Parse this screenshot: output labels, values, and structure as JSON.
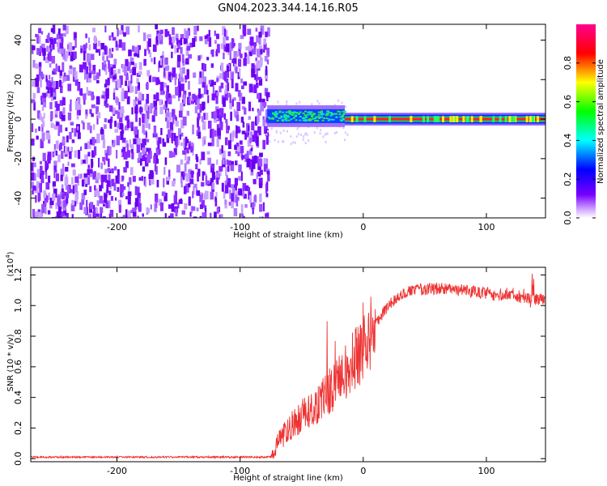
{
  "title": "GN04.2023.344.14.16.R05",
  "chart_data": [
    {
      "type": "heatmap",
      "xlabel": "Height of straight line (km)",
      "ylabel": "Frequency (Hz)",
      "xlim": [
        -270,
        148
      ],
      "ylim": [
        -50,
        48
      ],
      "x_ticks": [
        -200,
        -100,
        0,
        100
      ],
      "y_ticks": [
        40,
        20,
        0,
        -20,
        -40
      ],
      "colorbar": {
        "label": "Normalized spectral amplitude",
        "range": [
          0,
          1
        ],
        "ticks": [
          "0.0",
          "0.2",
          "0.4",
          "0.6",
          "0.8"
        ],
        "colors": [
          "#ffffff",
          "#7700ff",
          "#0000ff",
          "#00ffff",
          "#00ff00",
          "#ffff00",
          "#ff0000",
          "#ff0090"
        ]
      },
      "regions": [
        {
          "x_range": [
            -270,
            -78
          ],
          "description_value": "broadband noise",
          "amplitude": 0.05
        },
        {
          "x_range": [
            -78,
            -15
          ],
          "center_hz": 2,
          "amplitude": 0.45
        },
        {
          "x_range": [
            -15,
            148
          ],
          "center_hz": 0,
          "amplitude": 0.9
        }
      ]
    },
    {
      "type": "line",
      "xlabel": "Height of straight line (km)",
      "ylabel": "SNR (10 * v/v)",
      "y_multiplier": "(x10^4)",
      "xlim": [
        -270,
        148
      ],
      "ylim": [
        -0.02,
        1.25
      ],
      "x_ticks": [
        -200,
        -100,
        0,
        100
      ],
      "y_ticks": [
        "0.0",
        "0.2",
        "0.4",
        "0.6",
        "0.8",
        "1.0",
        "1.2"
      ],
      "color": "#ee3333",
      "series": [
        {
          "x": [
            -270,
            -240,
            -200,
            -160,
            -120,
            -90,
            -75,
            -70,
            -60,
            -50,
            -40,
            -30,
            -20,
            -10,
            0,
            10,
            20,
            30,
            40,
            60,
            80,
            100,
            110,
            120,
            130,
            148
          ],
          "y": [
            0.01,
            0.01,
            0.01,
            0.01,
            0.01,
            0.01,
            0.01,
            0.1,
            0.2,
            0.28,
            0.32,
            0.42,
            0.5,
            0.62,
            0.72,
            0.88,
            1.0,
            1.07,
            1.1,
            1.11,
            1.1,
            1.08,
            1.07,
            1.08,
            1.05,
            1.04
          ]
        }
      ]
    }
  ]
}
